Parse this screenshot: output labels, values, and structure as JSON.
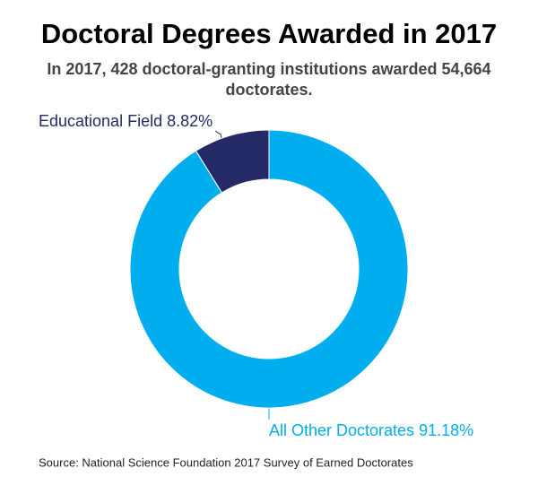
{
  "chart_data": {
    "type": "donut",
    "title": "Doctoral Degrees Awarded in 2017",
    "subtitle": [
      "In 2017, 428 doctoral-granting institutions awarded 54,664",
      "doctorates."
    ],
    "categories": [
      "Educational Field",
      "All Other Doctorates"
    ],
    "values": [
      8.82,
      91.18
    ],
    "value_labels": [
      "8.82%",
      "91.18%"
    ],
    "colors": [
      "#232a66",
      "#00aeef"
    ],
    "source": "Source: National Science Foundation 2017 Survey of Earned Doctorates"
  }
}
